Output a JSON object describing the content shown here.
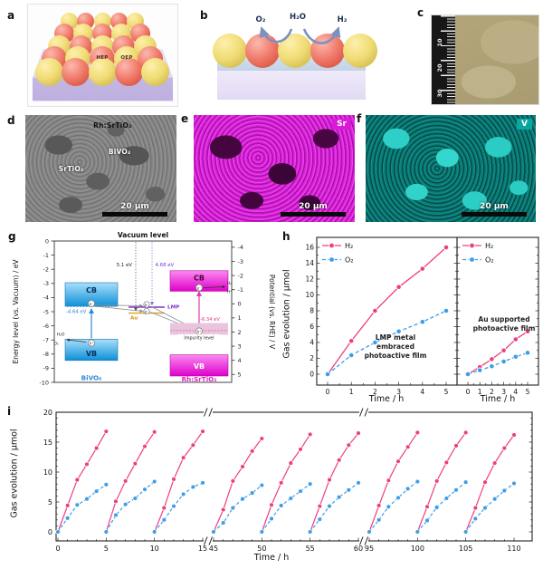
{
  "colors": {
    "h2": "#ee3e82",
    "o2": "#3d9de8",
    "sr_map": "#c515c5",
    "v_map": "#0aa6a0",
    "bivo4": "#2f88d8",
    "rh_srtio3": "#e41fc8",
    "au": "#cf9416",
    "lmp": "#7a35cc"
  },
  "panel_a": {
    "label": "a",
    "hep": "HEP",
    "oep": "OEP"
  },
  "panel_b": {
    "label": "b",
    "o2": "O₂",
    "h2o": "H₂O",
    "h2": "H₂"
  },
  "panel_c": {
    "label": "c",
    "ruler_marks": [
      "10",
      "20",
      "30"
    ]
  },
  "panel_d": {
    "label": "d",
    "labels": {
      "top": "Rh:SrTiO₃",
      "mid": "BiVO₄",
      "left": "SrTiO₃"
    },
    "scale_bar": "20 μm"
  },
  "panel_e": {
    "label": "e",
    "badge": "Sr",
    "scale_bar": "20 μm"
  },
  "panel_f": {
    "label": "f",
    "badge": "V",
    "scale_bar": "20 μm"
  },
  "panel_g": {
    "label": "g",
    "vacuum_label": "Vacuum level",
    "y_left_label": "Energy level (vs. Vacuum) / eV",
    "y_left_ticks": [
      0,
      -1,
      -2,
      -3,
      -4,
      -5,
      -6,
      -7,
      -8,
      -9,
      -10
    ],
    "y_right_label": "Potential (vs. RHE) / V",
    "y_right_ticks": [
      -4,
      -3,
      -2,
      -1,
      0,
      1,
      2,
      3,
      4,
      5
    ],
    "work_function_au": "5.1 eV",
    "work_function_lmp": "4.68 eV",
    "au_label": "Au",
    "lmp_label": "LMP",
    "electron": "e⁻",
    "hole": "h⁺",
    "bivo4": {
      "name": "BiVO₄",
      "cb": "CB",
      "vb": "VB",
      "cb_edge": "-4.64 eV",
      "water": "H₂O",
      "oxygen": "O₂"
    },
    "rh_srtio3": {
      "name": "Rh:SrTiO₃",
      "cb": "CB",
      "vb": "VB",
      "impurity": "Impurity level",
      "impurity_edge": "-6.34 eV",
      "hydrogen": "H₂",
      "proton": "H⁺"
    }
  },
  "panel_h": {
    "label": "h"
  },
  "panel_i": {
    "label": "i"
  },
  "chart_data": [
    {
      "id": "h_left",
      "type": "line",
      "xlabel": "Time / h",
      "ylabel": "Gas evolution / μmol",
      "x": [
        0,
        1,
        2,
        3,
        4,
        5
      ],
      "xlim": [
        0,
        5
      ],
      "ylim": [
        0,
        16
      ],
      "ytick_step": 2,
      "series": [
        {
          "name": "H₂",
          "color": "#ee3e82",
          "style": "solid",
          "values": [
            0,
            4.2,
            8.0,
            11.0,
            13.3,
            16.0
          ]
        },
        {
          "name": "O₂",
          "color": "#3d9de8",
          "style": "dashed",
          "values": [
            0,
            2.4,
            4.0,
            5.4,
            6.6,
            8.0
          ]
        }
      ],
      "annotation_lines": [
        "LMP metal",
        "embraced",
        "photoactive film"
      ]
    },
    {
      "id": "h_right",
      "type": "line",
      "xlabel": "Time / h",
      "ylabel": "Gas evolution / μmol",
      "x": [
        0,
        1,
        2,
        3,
        4,
        5
      ],
      "xlim": [
        0,
        5
      ],
      "ylim": [
        0,
        16
      ],
      "ytick_step": 2,
      "series": [
        {
          "name": "H₂",
          "color": "#ee3e82",
          "style": "solid",
          "values": [
            0,
            0.9,
            1.9,
            3.0,
            4.4,
            5.4
          ]
        },
        {
          "name": "O₂",
          "color": "#3d9de8",
          "style": "dashed",
          "values": [
            0,
            0.5,
            1.0,
            1.6,
            2.2,
            2.7
          ]
        }
      ],
      "annotation_lines": [
        "Au supported",
        "photoactive film"
      ]
    },
    {
      "id": "i_cycles",
      "type": "line",
      "xlabel": "Time / h",
      "ylabel": "Gas evolution / μmol",
      "ylim": [
        0,
        20
      ],
      "yticks": [
        0,
        5,
        10,
        15,
        20
      ],
      "x_segments": [
        [
          0,
          15
        ],
        [
          45,
          60
        ],
        [
          95,
          110
        ]
      ],
      "series_colors": {
        "H2": "#ee3e82",
        "O2": "#3d9de8"
      },
      "cycles": [
        {
          "start": 0,
          "H2": [
            0,
            4.4,
            8.7,
            11.3,
            14.0,
            16.8
          ],
          "O2": [
            0,
            2.3,
            4.5,
            5.5,
            6.8,
            7.9
          ]
        },
        {
          "start": 5,
          "H2": [
            0,
            5.1,
            8.5,
            11.4,
            14.3,
            16.7
          ],
          "O2": [
            0,
            2.8,
            4.6,
            5.6,
            7.1,
            8.4
          ]
        },
        {
          "start": 10,
          "H2": [
            0,
            4.0,
            8.8,
            12.4,
            14.5,
            16.8
          ],
          "O2": [
            0,
            2.0,
            4.3,
            6.3,
            7.5,
            8.2
          ]
        },
        {
          "start": 45,
          "H2": [
            0,
            3.7,
            8.5,
            10.9,
            13.5,
            15.6
          ],
          "O2": [
            0,
            1.5,
            4.0,
            5.5,
            6.5,
            7.8
          ]
        },
        {
          "start": 50,
          "H2": [
            0,
            4.5,
            8.2,
            11.5,
            13.8,
            16.3
          ],
          "O2": [
            0,
            2.2,
            4.4,
            5.6,
            6.8,
            8.0
          ]
        },
        {
          "start": 55,
          "H2": [
            0,
            4.3,
            8.7,
            12.0,
            14.5,
            16.5
          ],
          "O2": [
            0,
            2.1,
            4.3,
            5.8,
            7.0,
            8.2
          ]
        },
        {
          "start": 95,
          "H2": [
            0,
            4.4,
            8.6,
            11.8,
            14.2,
            16.6
          ],
          "O2": [
            0,
            2.0,
            4.2,
            5.7,
            7.2,
            8.4
          ]
        },
        {
          "start": 100,
          "H2": [
            0,
            4.2,
            8.5,
            11.6,
            14.4,
            16.6
          ],
          "O2": [
            0,
            1.9,
            4.1,
            5.6,
            7.0,
            8.3
          ]
        },
        {
          "start": 105,
          "H2": [
            0,
            4.0,
            8.3,
            11.5,
            14.0,
            16.2
          ],
          "O2": [
            0,
            2.2,
            4.0,
            5.5,
            6.9,
            8.1
          ]
        }
      ]
    }
  ]
}
